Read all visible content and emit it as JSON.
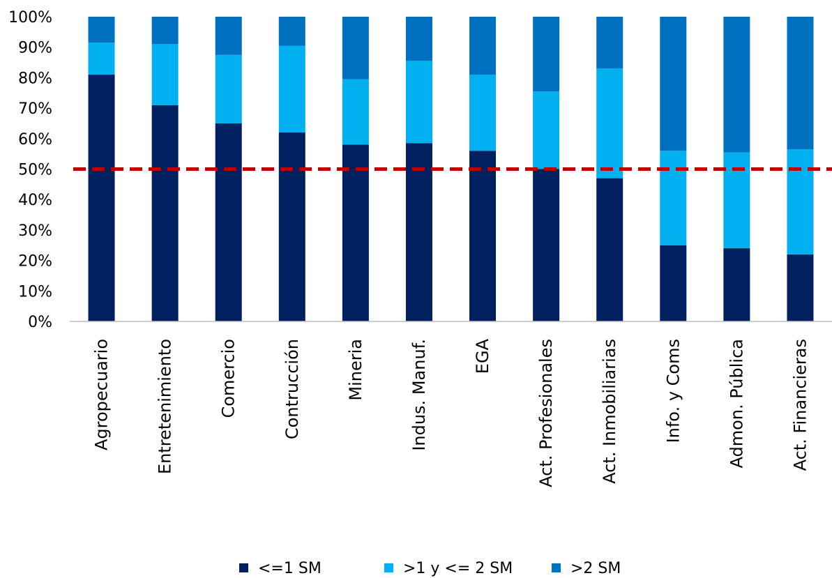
{
  "chart_data": {
    "type": "bar",
    "stacked": true,
    "percent_scale": true,
    "categories": [
      "Agropecuario",
      "Entretenimiento",
      "Comercio",
      "Contrucción",
      "Mineria",
      "Indus. Manuf.",
      "EGA",
      "Act. Profesionales",
      "Act. Inmobiliarias",
      "Info. y Coms",
      "Admon. Pública",
      "Act. Financieras"
    ],
    "series": [
      {
        "name": "<=1 SM",
        "color": "#002060",
        "values": [
          81,
          71,
          65,
          62,
          58,
          58.5,
          56,
          50,
          47,
          25,
          24,
          22
        ]
      },
      {
        "name": ">1 y <= 2 SM",
        "color": "#00B0F0",
        "values": [
          10.5,
          20,
          22.5,
          28.5,
          21.5,
          27,
          25,
          25.5,
          36,
          31,
          31.5,
          34.5
        ]
      },
      {
        "name": ">2 SM",
        "color": "#0070C0",
        "values": [
          8.5,
          9,
          12.5,
          9.5,
          20.5,
          14.5,
          19,
          24.5,
          17,
          44,
          44.5,
          43.5
        ]
      }
    ],
    "yticks": [
      "0%",
      "10%",
      "20%",
      "30%",
      "40%",
      "50%",
      "60%",
      "70%",
      "80%",
      "90%",
      "100%"
    ],
    "ylim": [
      0,
      100
    ],
    "reference_line": {
      "value": 50,
      "color": "#C00000",
      "style": "dashed"
    },
    "grid": false,
    "legend_position": "bottom"
  }
}
